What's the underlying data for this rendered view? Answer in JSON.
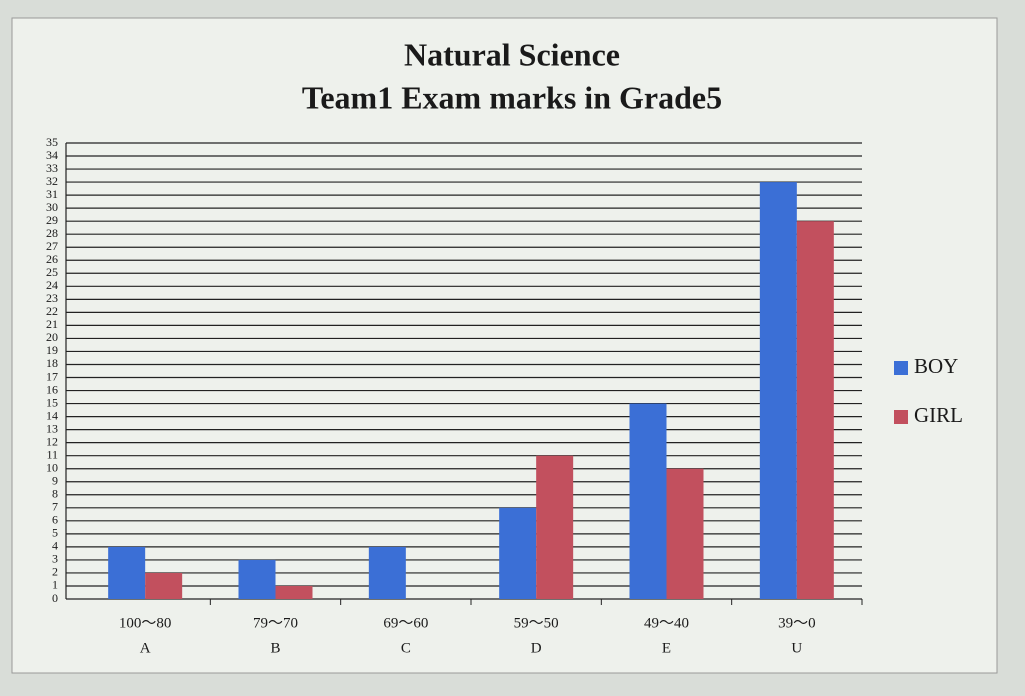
{
  "chart_data": {
    "type": "bar",
    "title": [
      "Natural Science",
      "Team1 Exam marks in Grade5"
    ],
    "categories": [
      [
        "100～80",
        "A"
      ],
      [
        "79～70",
        "B"
      ],
      [
        "69～60",
        "C"
      ],
      [
        "59～50",
        "D"
      ],
      [
        "49～40",
        "E"
      ],
      [
        "39～0",
        "U"
      ]
    ],
    "series": [
      {
        "name": "BOY",
        "color": "#3b6fd6",
        "values": [
          4,
          3,
          4,
          7,
          15,
          32
        ]
      },
      {
        "name": "GIRL",
        "color": "#c2505e",
        "values": [
          2,
          1,
          0,
          11,
          10,
          29
        ]
      }
    ],
    "ylim": [
      0,
      35
    ],
    "yticks": [
      0,
      1,
      2,
      3,
      4,
      5,
      6,
      7,
      8,
      9,
      10,
      11,
      12,
      13,
      14,
      15,
      16,
      17,
      18,
      19,
      20,
      21,
      22,
      23,
      24,
      25,
      26,
      27,
      28,
      29,
      30,
      31,
      32,
      33,
      34,
      35
    ],
    "grid": true,
    "legend": "right"
  }
}
